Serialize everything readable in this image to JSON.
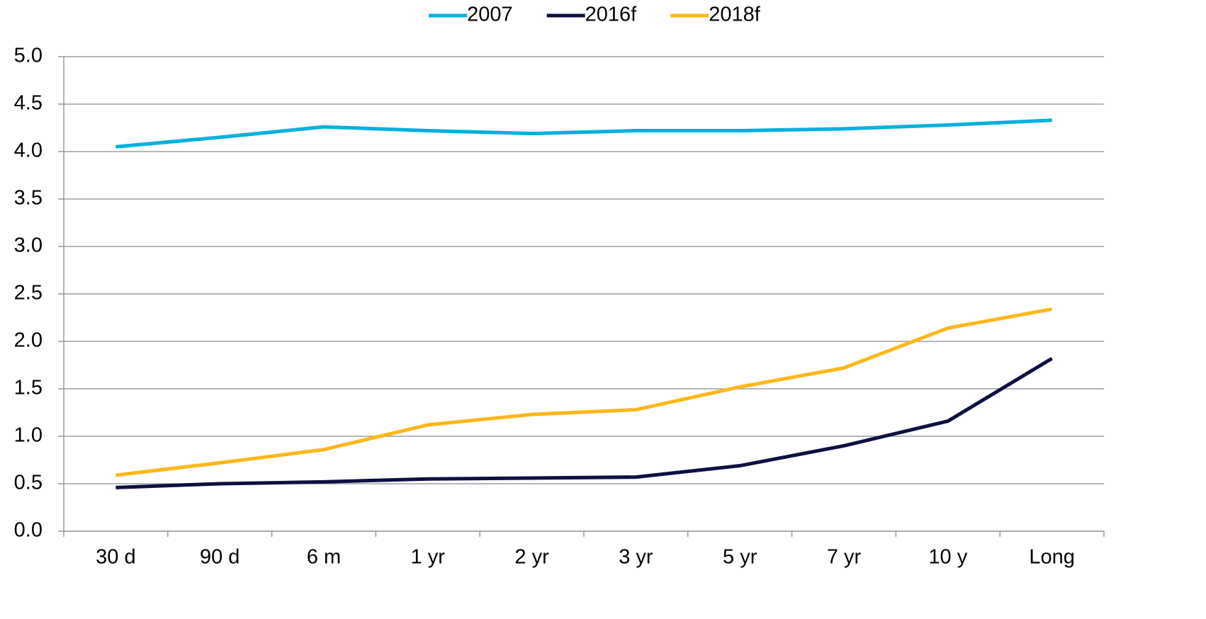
{
  "chart_data": {
    "type": "line",
    "categories": [
      "30 d",
      "90 d",
      "6 m",
      "1 yr",
      "2 yr",
      "3 yr",
      "5 yr",
      "7 yr",
      "10 y",
      "Long"
    ],
    "series": [
      {
        "name": "2007",
        "color": "#00b0db",
        "values": [
          4.05,
          4.15,
          4.26,
          4.22,
          4.19,
          4.22,
          4.22,
          4.24,
          4.28,
          4.33
        ]
      },
      {
        "name": "2016f",
        "color": "#0c1142",
        "values": [
          0.46,
          0.5,
          0.52,
          0.55,
          0.56,
          0.57,
          0.69,
          0.9,
          1.16,
          1.82
        ]
      },
      {
        "name": "2018f",
        "color": "#fbb819",
        "values": [
          0.59,
          0.72,
          0.86,
          1.12,
          1.23,
          1.28,
          1.52,
          1.72,
          2.14,
          2.34
        ]
      }
    ],
    "ylim": [
      0,
      5
    ],
    "yticks": [
      {
        "value": 0,
        "label": "0.0"
      },
      {
        "value": 0.5,
        "label": "0.5"
      },
      {
        "value": 1,
        "label": "1.0"
      },
      {
        "value": 1.5,
        "label": "1.5"
      },
      {
        "value": 2,
        "label": "2.0"
      },
      {
        "value": 2.5,
        "label": "2.5"
      },
      {
        "value": 3,
        "label": "3.0"
      },
      {
        "value": 3.5,
        "label": "3.5"
      },
      {
        "value": 4,
        "label": "4.0"
      },
      {
        "value": 4.5,
        "label": "4.5"
      },
      {
        "value": 5,
        "label": "5.0"
      }
    ],
    "grid": true,
    "legend": "top"
  }
}
